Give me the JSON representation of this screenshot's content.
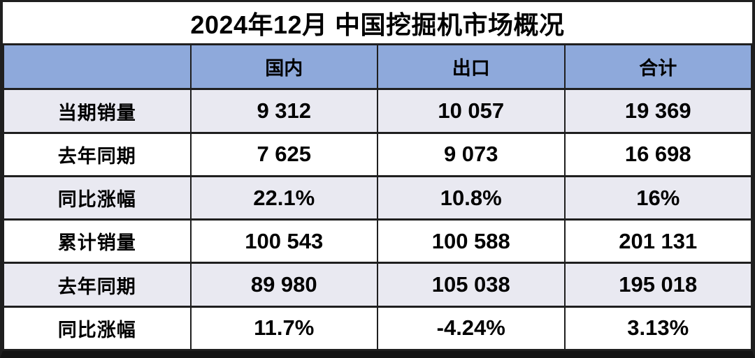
{
  "chart_data": {
    "type": "table",
    "title": "2024年12月 中国挖掘机市场概况",
    "columns": [
      "",
      "国内",
      "出口",
      "合计"
    ],
    "rows": [
      {
        "label": "当期销量",
        "values": [
          "9 312",
          "10 057",
          "19 369"
        ]
      },
      {
        "label": "去年同期",
        "values": [
          "7 625",
          "9 073",
          "16 698"
        ]
      },
      {
        "label": "同比涨幅",
        "values": [
          "22.1%",
          "10.8%",
          "16%"
        ]
      },
      {
        "label": "累计销量",
        "values": [
          "100 543",
          "100 588",
          "201 131"
        ]
      },
      {
        "label": "去年同期",
        "values": [
          "89 980",
          "105 038",
          "195 018"
        ]
      },
      {
        "label": "同比涨幅",
        "values": [
          "11.7%",
          "-4.24%",
          "3.13%"
        ]
      }
    ]
  },
  "colors": {
    "header_bg": "#8EA9DB",
    "alt_row_bg": "#E9E9F1",
    "row_bg": "#FFFFFF",
    "border": "#1F1F1F",
    "text": "#000000"
  }
}
